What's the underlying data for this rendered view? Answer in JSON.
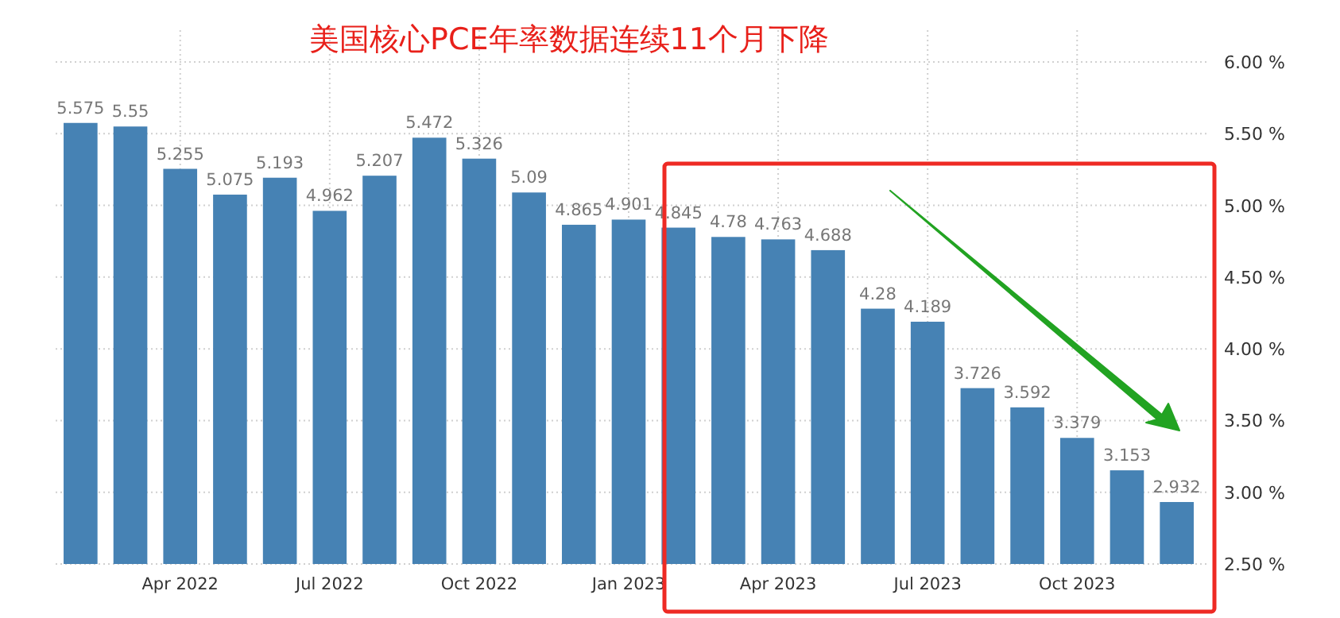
{
  "chart_data": {
    "type": "bar",
    "title": "美国核心PCE年率数据连续11个月下降",
    "categories": [
      null,
      null,
      "Apr 2022",
      null,
      null,
      "Jul 2022",
      null,
      null,
      "Oct 2022",
      null,
      null,
      "Jan 2023",
      null,
      null,
      "Apr 2023",
      null,
      null,
      "Jul 2023",
      null,
      null,
      "Oct 2023",
      null,
      null
    ],
    "values": [
      5.575,
      5.55,
      5.255,
      5.075,
      5.193,
      4.962,
      5.207,
      5.472,
      5.326,
      5.09,
      4.865,
      4.901,
      4.845,
      4.78,
      4.763,
      4.688,
      4.28,
      4.189,
      3.726,
      3.592,
      3.379,
      3.153,
      2.932
    ],
    "color": "#4682b4",
    "ylim": [
      2.5,
      6.0
    ],
    "yticks": [
      {
        "value": 2.5,
        "label": "2.50 %"
      },
      {
        "value": 3.0,
        "label": "3.00 %"
      },
      {
        "value": 3.5,
        "label": "3.50 %"
      },
      {
        "value": 4.0,
        "label": "4.00 %"
      },
      {
        "value": 4.5,
        "label": "4.50 %"
      },
      {
        "value": 5.0,
        "label": "5.00 %"
      },
      {
        "value": 5.5,
        "label": "5.50 %"
      },
      {
        "value": 6.0,
        "label": "6.00 %"
      }
    ],
    "grid": true,
    "data_labels": true
  }
}
